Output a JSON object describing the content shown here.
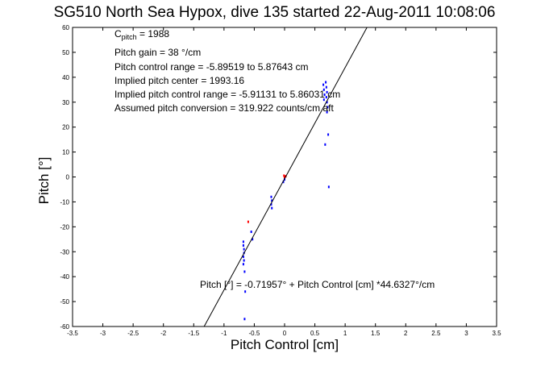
{
  "chart_data": {
    "type": "scatter",
    "title": "SG510 North Sea Hypox, dive 135 started 22-Aug-2011 10:08:06",
    "xlabel": "Pitch Control [cm]",
    "ylabel": "Pitch [°]",
    "xlim": [
      -3.5,
      3.5
    ],
    "ylim": [
      -60,
      60
    ],
    "xticks": [
      "-3.5",
      "-3",
      "-2.5",
      "-2",
      "-1.5",
      "-1",
      "-0.5",
      "0",
      "0.5",
      "1",
      "1.5",
      "2",
      "2.5",
      "3",
      "3.5"
    ],
    "xtick_values": [
      -3.5,
      -3,
      -2.5,
      -2,
      -1.5,
      -1,
      -0.5,
      0,
      0.5,
      1,
      1.5,
      2,
      2.5,
      3,
      3.5
    ],
    "yticks": [
      "60",
      "50",
      "40",
      "30",
      "20",
      "10",
      "0",
      "-10",
      "-20",
      "-30",
      "-40",
      "-50",
      "-60"
    ],
    "ytick_values": [
      60,
      50,
      40,
      30,
      20,
      10,
      0,
      -10,
      -20,
      -30,
      -40,
      -50,
      -60
    ],
    "grid": false,
    "annotations": {
      "c_pitch_prefix": "C",
      "c_pitch_sub": "pitch",
      "c_pitch_value": " = 1988",
      "pitch_gain": "Pitch gain = 38 °/cm",
      "control_range": "Pitch control range = -5.89519 to 5.87643 cm",
      "implied_center": "Implied pitch center = 1993.16",
      "implied_range": "Implied pitch control range = -5.91131 to 5.86031 cm",
      "conversion": "Assumed pitch conversion = 319.922 counts/cm aft",
      "fit_equation": "Pitch [°] = -0.71957° + Pitch Control [cm] *44.6327°/cm"
    },
    "fit_line": {
      "slope": 44.6327,
      "intercept": -0.71957
    },
    "series": [
      {
        "color": "#0000ff",
        "points": [
          [
            -0.68,
            -26
          ],
          [
            -0.68,
            -27.5
          ],
          [
            -0.67,
            -29
          ],
          [
            -0.67,
            -30.5
          ],
          [
            -0.68,
            -32
          ],
          [
            -0.67,
            -33.5
          ],
          [
            -0.68,
            -35
          ],
          [
            -0.66,
            -38
          ],
          [
            -0.65,
            -46
          ],
          [
            -0.66,
            -57
          ],
          [
            -0.53,
            -25
          ],
          [
            -0.55,
            -22
          ],
          [
            -0.22,
            -8
          ],
          [
            -0.21,
            -9.5
          ],
          [
            -0.22,
            -11
          ],
          [
            -0.21,
            -12.5
          ],
          [
            0.64,
            37
          ],
          [
            0.65,
            35
          ],
          [
            0.66,
            33
          ],
          [
            0.65,
            31
          ],
          [
            0.68,
            38
          ],
          [
            0.69,
            36
          ],
          [
            0.7,
            34
          ],
          [
            0.69,
            32
          ],
          [
            0.7,
            30
          ],
          [
            0.71,
            28
          ],
          [
            0.7,
            26
          ],
          [
            0.67,
            13
          ],
          [
            0.72,
            17
          ],
          [
            0.73,
            -4
          ],
          [
            -0.02,
            -2
          ],
          [
            0.0,
            -1
          ]
        ]
      },
      {
        "color": "#ff0000",
        "points": [
          [
            -0.01,
            0.5
          ],
          [
            0.0,
            0.0
          ],
          [
            0.02,
            0.3
          ],
          [
            -0.6,
            -18
          ]
        ]
      }
    ]
  }
}
